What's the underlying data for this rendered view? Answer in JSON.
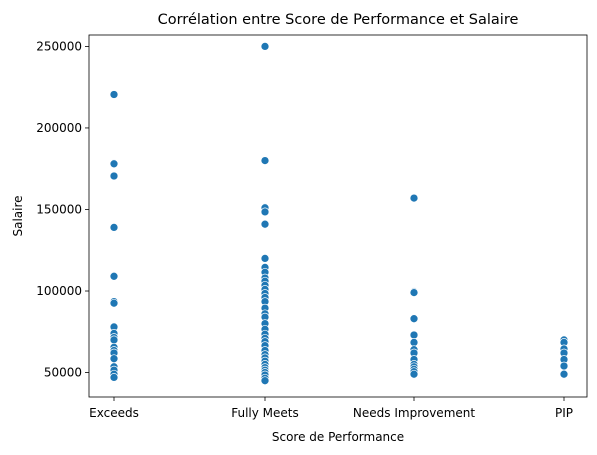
{
  "chart_data": {
    "type": "scatter",
    "title": "Corrélation entre Score de Performance et Salaire",
    "xlabel": "Score de Performance",
    "ylabel": "Salaire",
    "categories": [
      "Exceeds",
      "Fully Meets",
      "Needs Improvement",
      "PIP"
    ],
    "ylim": [
      35000,
      257000
    ],
    "yticks": [
      50000,
      100000,
      150000,
      200000,
      250000
    ],
    "grid": false,
    "marker_color": "#1f77b4",
    "series": [
      {
        "points": [
          {
            "x": "Exceeds",
            "y": 220500
          },
          {
            "x": "Exceeds",
            "y": 178000
          },
          {
            "x": "Exceeds",
            "y": 170500
          },
          {
            "x": "Exceeds",
            "y": 139000
          },
          {
            "x": "Exceeds",
            "y": 109000
          },
          {
            "x": "Exceeds",
            "y": 93500
          },
          {
            "x": "Exceeds",
            "y": 92500
          },
          {
            "x": "Exceeds",
            "y": 78000
          },
          {
            "x": "Exceeds",
            "y": 74000
          },
          {
            "x": "Exceeds",
            "y": 71500
          },
          {
            "x": "Exceeds",
            "y": 70000
          },
          {
            "x": "Exceeds",
            "y": 65500
          },
          {
            "x": "Exceeds",
            "y": 63500
          },
          {
            "x": "Exceeds",
            "y": 62000
          },
          {
            "x": "Exceeds",
            "y": 58500
          },
          {
            "x": "Exceeds",
            "y": 53500
          },
          {
            "x": "Exceeds",
            "y": 51500
          },
          {
            "x": "Exceeds",
            "y": 49000
          },
          {
            "x": "Exceeds",
            "y": 47000
          },
          {
            "x": "Fully Meets",
            "y": 250000
          },
          {
            "x": "Fully Meets",
            "y": 180000
          },
          {
            "x": "Fully Meets",
            "y": 151000
          },
          {
            "x": "Fully Meets",
            "y": 148500
          },
          {
            "x": "Fully Meets",
            "y": 141000
          },
          {
            "x": "Fully Meets",
            "y": 120000
          },
          {
            "x": "Fully Meets",
            "y": 114500
          },
          {
            "x": "Fully Meets",
            "y": 111500
          },
          {
            "x": "Fully Meets",
            "y": 108000
          },
          {
            "x": "Fully Meets",
            "y": 106000
          },
          {
            "x": "Fully Meets",
            "y": 103500
          },
          {
            "x": "Fully Meets",
            "y": 101000
          },
          {
            "x": "Fully Meets",
            "y": 98500
          },
          {
            "x": "Fully Meets",
            "y": 96000
          },
          {
            "x": "Fully Meets",
            "y": 93500
          },
          {
            "x": "Fully Meets",
            "y": 89500
          },
          {
            "x": "Fully Meets",
            "y": 86000
          },
          {
            "x": "Fully Meets",
            "y": 84000
          },
          {
            "x": "Fully Meets",
            "y": 80000
          },
          {
            "x": "Fully Meets",
            "y": 76500
          },
          {
            "x": "Fully Meets",
            "y": 73500
          },
          {
            "x": "Fully Meets",
            "y": 71000
          },
          {
            "x": "Fully Meets",
            "y": 69000
          },
          {
            "x": "Fully Meets",
            "y": 66500
          },
          {
            "x": "Fully Meets",
            "y": 63500
          },
          {
            "x": "Fully Meets",
            "y": 61000
          },
          {
            "x": "Fully Meets",
            "y": 59000
          },
          {
            "x": "Fully Meets",
            "y": 57000
          },
          {
            "x": "Fully Meets",
            "y": 55000
          },
          {
            "x": "Fully Meets",
            "y": 53000
          },
          {
            "x": "Fully Meets",
            "y": 51500
          },
          {
            "x": "Fully Meets",
            "y": 50000
          },
          {
            "x": "Fully Meets",
            "y": 48500
          },
          {
            "x": "Fully Meets",
            "y": 46500
          },
          {
            "x": "Fully Meets",
            "y": 45000
          },
          {
            "x": "Needs Improvement",
            "y": 157000
          },
          {
            "x": "Needs Improvement",
            "y": 99500
          },
          {
            "x": "Needs Improvement",
            "y": 99000
          },
          {
            "x": "Needs Improvement",
            "y": 83000
          },
          {
            "x": "Needs Improvement",
            "y": 73000
          },
          {
            "x": "Needs Improvement",
            "y": 68500
          },
          {
            "x": "Needs Improvement",
            "y": 64000
          },
          {
            "x": "Needs Improvement",
            "y": 62000
          },
          {
            "x": "Needs Improvement",
            "y": 58000
          },
          {
            "x": "Needs Improvement",
            "y": 55000
          },
          {
            "x": "Needs Improvement",
            "y": 53500
          },
          {
            "x": "Needs Improvement",
            "y": 52000
          },
          {
            "x": "Needs Improvement",
            "y": 50500
          },
          {
            "x": "Needs Improvement",
            "y": 49000
          },
          {
            "x": "PIP",
            "y": 70000
          },
          {
            "x": "PIP",
            "y": 68500
          },
          {
            "x": "PIP",
            "y": 64500
          },
          {
            "x": "PIP",
            "y": 62000
          },
          {
            "x": "PIP",
            "y": 58000
          },
          {
            "x": "PIP",
            "y": 54000
          },
          {
            "x": "PIP",
            "y": 49000
          }
        ]
      }
    ]
  }
}
